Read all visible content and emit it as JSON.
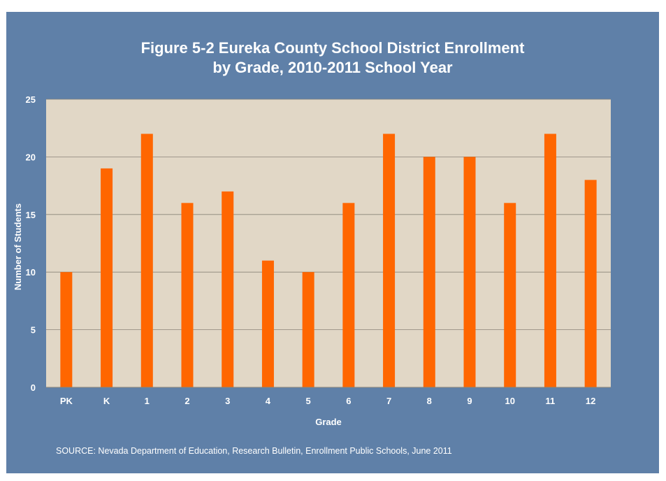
{
  "title": {
    "line1": "Figure 5-2 Eureka County School District Enrollment",
    "line2": "by Grade, 2010-2011 School Year"
  },
  "source": "SOURCE: Nevada Department of Education, Research Bulletin, Enrollment Public Schools, June 2011",
  "colors": {
    "background": "#5f80a8",
    "plot_area": "#e1d7c6",
    "bar": "#ff6600",
    "text": "#ffffff"
  },
  "chart_data": {
    "type": "bar",
    "title": "Figure 5-2 Eureka County School District Enrollment by Grade, 2010-2011 School Year",
    "xlabel": "Grade",
    "ylabel": "Number of Students",
    "categories": [
      "PK",
      "K",
      "1",
      "2",
      "3",
      "4",
      "5",
      "6",
      "7",
      "8",
      "9",
      "10",
      "11",
      "12"
    ],
    "values": [
      10,
      19,
      22,
      16,
      17,
      11,
      10,
      16,
      22,
      20,
      20,
      16,
      22,
      18
    ],
    "ylim": [
      0,
      25
    ],
    "yticks": [
      0,
      5,
      10,
      15,
      20,
      25
    ],
    "grid": true,
    "legend": "none"
  }
}
